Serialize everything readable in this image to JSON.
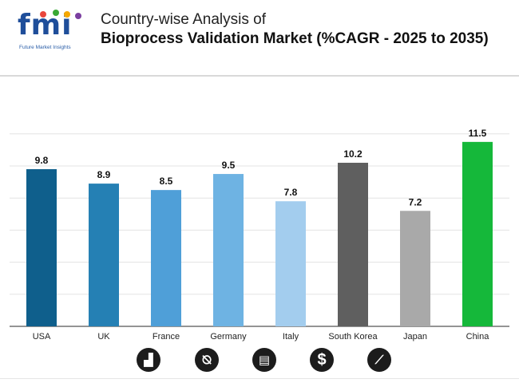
{
  "logo": {
    "mark": "fmi",
    "tagline": "Future Market Insights",
    "colors": [
      "#e8463c",
      "#3aa935",
      "#f6a800",
      "#7b3fa0"
    ]
  },
  "header": {
    "title_line1": "Country-wise Analysis of",
    "title_line2": "Bioprocess Validation Market (%CAGR - 2025 to 2035)"
  },
  "chart_data": {
    "type": "bar",
    "title": "Country-wise Analysis of Bioprocess Validation Market (%CAGR - 2025 to 2035)",
    "xlabel": "",
    "ylabel": "",
    "ylim": [
      0,
      12
    ],
    "grid": true,
    "categories": [
      "USA",
      "UK",
      "France",
      "Germany",
      "Italy",
      "South Korea",
      "Japan",
      "China"
    ],
    "values": [
      9.8,
      8.9,
      8.5,
      9.5,
      7.8,
      10.2,
      7.2,
      11.5
    ],
    "value_labels": [
      "9.8",
      "8.9",
      "8.5",
      "9.5",
      "7.8",
      "10.2",
      "7.2",
      "11.5"
    ],
    "colors": [
      "#0f5f8c",
      "#2580b4",
      "#4f9fd8",
      "#6eb3e3",
      "#a3cdee",
      "#5f5f5f",
      "#a9a9a9",
      "#15b83a"
    ]
  },
  "footer_icons": [
    {
      "name": "growth-chart-icon",
      "glyph": "▟"
    },
    {
      "name": "magnifier-trend-icon",
      "glyph": "⦰"
    },
    {
      "name": "document-list-icon",
      "glyph": "▤"
    },
    {
      "name": "dollar-icon",
      "glyph": "$"
    },
    {
      "name": "line-chart-icon",
      "glyph": "⟋"
    }
  ]
}
